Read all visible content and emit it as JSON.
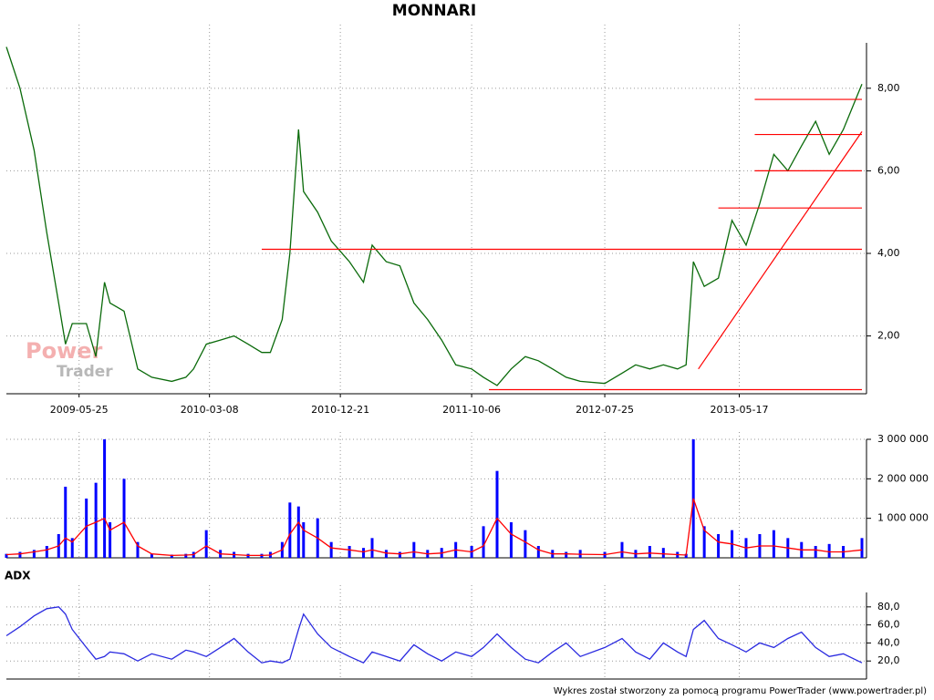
{
  "chart_data": [
    {
      "type": "line",
      "title": "MONNARI",
      "x": [
        "2008-12-16",
        "2009-01-15",
        "2009-02-15",
        "2009-03-15",
        "2009-04-10",
        "2009-04-25",
        "2009-05-10",
        "2009-06-10",
        "2009-07-01",
        "2009-07-20",
        "2009-08-01",
        "2009-09-01",
        "2009-10-01",
        "2009-11-01",
        "2009-12-15",
        "2010-01-15",
        "2010-02-01",
        "2010-03-01",
        "2010-04-01",
        "2010-05-01",
        "2010-06-01",
        "2010-07-01",
        "2010-07-20",
        "2010-08-15",
        "2010-09-01",
        "2010-09-20",
        "2010-10-01",
        "2010-11-01",
        "2010-12-01",
        "2011-01-10",
        "2011-02-10",
        "2011-03-01",
        "2011-04-01",
        "2011-05-01",
        "2011-06-01",
        "2011-07-01",
        "2011-08-01",
        "2011-09-01",
        "2011-10-06",
        "2011-11-01",
        "2011-12-01",
        "2012-01-01",
        "2012-02-01",
        "2012-03-01",
        "2012-04-01",
        "2012-05-01",
        "2012-06-01",
        "2012-07-25",
        "2012-09-01",
        "2012-10-01",
        "2012-11-01",
        "2012-12-01",
        "2013-01-01",
        "2013-01-20",
        "2013-02-05",
        "2013-03-01",
        "2013-04-01",
        "2013-05-01",
        "2013-06-01",
        "2013-07-01",
        "2013-08-01",
        "2013-09-01",
        "2013-10-01",
        "2013-11-01",
        "2013-12-01",
        "2014-01-01",
        "2014-02-11"
      ],
      "series": [
        {
          "color": "#0a6a0a",
          "values": [
            9.0,
            8.0,
            6.5,
            4.5,
            2.8,
            1.8,
            2.3,
            2.3,
            1.5,
            3.3,
            2.8,
            2.6,
            1.2,
            1.0,
            0.9,
            1.0,
            1.2,
            1.8,
            1.9,
            2.0,
            1.8,
            1.6,
            1.6,
            2.4,
            4.0,
            7.0,
            5.5,
            5.0,
            4.3,
            3.8,
            3.3,
            4.2,
            3.8,
            3.7,
            2.8,
            2.4,
            1.9,
            1.3,
            1.2,
            1.0,
            0.8,
            1.2,
            1.5,
            1.4,
            1.2,
            1.0,
            0.9,
            0.85,
            1.1,
            1.3,
            1.2,
            1.3,
            1.2,
            1.3,
            3.8,
            3.2,
            3.4,
            4.8,
            4.2,
            5.2,
            6.4,
            6.0,
            6.6,
            7.2,
            6.4,
            7.0,
            8.1
          ]
        }
      ],
      "lines": [
        {
          "color": "#ff0000",
          "x": [
            "2010-07-01",
            "2014-02-11"
          ],
          "y": [
            4.1,
            4.1
          ]
        },
        {
          "color": "#ff0000",
          "x": [
            "2011-11-13",
            "2014-02-11"
          ],
          "y": [
            0.7,
            0.7
          ]
        },
        {
          "color": "#ff0000",
          "x": [
            "2013-04-01",
            "2014-02-11"
          ],
          "y": [
            5.1,
            5.1
          ]
        },
        {
          "color": "#ff0000",
          "x": [
            "2013-06-20",
            "2014-02-11"
          ],
          "y": [
            6.0,
            6.0
          ]
        },
        {
          "color": "#ff0000",
          "x": [
            "2013-06-20",
            "2014-02-11"
          ],
          "y": [
            6.88,
            6.88
          ]
        },
        {
          "color": "#ff0000",
          "x": [
            "2013-06-20",
            "2014-02-11"
          ],
          "y": [
            7.73,
            7.73
          ]
        },
        {
          "color": "#ff0000",
          "x": [
            "2013-02-16",
            "2014-02-11"
          ],
          "y": [
            1.2,
            6.95
          ]
        }
      ],
      "xlim": [
        "2008-12-16",
        "2014-02-11"
      ],
      "xticks": [
        "2009-05-25",
        "2010-03-08",
        "2010-12-21",
        "2011-10-06",
        "2012-07-25",
        "2013-05-17"
      ],
      "ylim": [
        0.6,
        9.1
      ],
      "yticks": [
        {
          "value": 2,
          "label": "2,00"
        },
        {
          "value": 4,
          "label": "4,00"
        },
        {
          "value": 6,
          "label": "6,00"
        },
        {
          "value": 8,
          "label": "8,00"
        }
      ],
      "grid": true,
      "watermark": [
        "Power",
        "Trader"
      ]
    },
    {
      "type": "bar",
      "x": [
        "2008-12-16",
        "2009-01-15",
        "2009-02-15",
        "2009-03-15",
        "2009-04-10",
        "2009-04-25",
        "2009-05-10",
        "2009-06-10",
        "2009-07-01",
        "2009-07-20",
        "2009-08-01",
        "2009-09-01",
        "2009-10-01",
        "2009-11-01",
        "2009-12-15",
        "2010-01-15",
        "2010-02-01",
        "2010-03-01",
        "2010-04-01",
        "2010-05-01",
        "2010-06-01",
        "2010-07-01",
        "2010-07-20",
        "2010-08-15",
        "2010-09-01",
        "2010-09-20",
        "2010-10-01",
        "2010-11-01",
        "2010-12-01",
        "2011-01-10",
        "2011-02-10",
        "2011-03-01",
        "2011-04-01",
        "2011-05-01",
        "2011-06-01",
        "2011-07-01",
        "2011-08-01",
        "2011-09-01",
        "2011-10-06",
        "2011-11-01",
        "2011-12-01",
        "2012-01-01",
        "2012-02-01",
        "2012-03-01",
        "2012-04-01",
        "2012-05-01",
        "2012-06-01",
        "2012-07-25",
        "2012-09-01",
        "2012-10-01",
        "2012-11-01",
        "2012-12-01",
        "2013-01-01",
        "2013-01-20",
        "2013-02-05",
        "2013-03-01",
        "2013-04-01",
        "2013-05-01",
        "2013-06-01",
        "2013-07-01",
        "2013-08-01",
        "2013-09-01",
        "2013-10-01",
        "2013-11-01",
        "2013-12-01",
        "2014-01-01",
        "2014-02-11"
      ],
      "series": [
        {
          "type": "bar",
          "color": "#0000ff",
          "values": [
            100000,
            150000,
            200000,
            300000,
            600000,
            1800000,
            500000,
            1500000,
            1900000,
            3000000,
            900000,
            2000000,
            400000,
            100000,
            80000,
            100000,
            150000,
            700000,
            200000,
            150000,
            100000,
            100000,
            150000,
            400000,
            1400000,
            1300000,
            900000,
            1000000,
            400000,
            300000,
            250000,
            500000,
            200000,
            150000,
            400000,
            200000,
            250000,
            400000,
            300000,
            800000,
            2200000,
            900000,
            700000,
            300000,
            200000,
            150000,
            200000,
            150000,
            400000,
            200000,
            300000,
            250000,
            150000,
            100000,
            3000000,
            800000,
            600000,
            700000,
            500000,
            600000,
            700000,
            500000,
            400000,
            300000,
            350000,
            300000,
            500000
          ]
        },
        {
          "type": "line",
          "color": "#ff0000",
          "values": [
            80000,
            100000,
            150000,
            200000,
            300000,
            500000,
            400000,
            800000,
            900000,
            1000000,
            700000,
            900000,
            300000,
            100000,
            60000,
            70000,
            80000,
            300000,
            100000,
            80000,
            60000,
            60000,
            70000,
            200000,
            600000,
            900000,
            700000,
            500000,
            250000,
            200000,
            150000,
            200000,
            120000,
            100000,
            150000,
            100000,
            120000,
            200000,
            150000,
            300000,
            1000000,
            600000,
            400000,
            200000,
            100000,
            100000,
            90000,
            80000,
            150000,
            100000,
            120000,
            100000,
            80000,
            70000,
            1500000,
            700000,
            400000,
            350000,
            250000,
            300000,
            300000,
            250000,
            200000,
            200000,
            150000,
            150000,
            200000
          ]
        }
      ],
      "xlim": [
        "2008-12-16",
        "2014-02-11"
      ],
      "ylim": [
        0,
        3000000
      ],
      "yticks": [
        {
          "value": 1000000,
          "label": "1 000 000"
        },
        {
          "value": 2000000,
          "label": "2 000 000"
        },
        {
          "value": 3000000,
          "label": "3 000 000"
        }
      ],
      "grid": true
    },
    {
      "type": "line",
      "title": "ADX",
      "x": [
        "2008-12-16",
        "2009-01-15",
        "2009-02-15",
        "2009-03-15",
        "2009-04-10",
        "2009-04-25",
        "2009-05-10",
        "2009-06-10",
        "2009-07-01",
        "2009-07-20",
        "2009-08-01",
        "2009-09-01",
        "2009-10-01",
        "2009-11-01",
        "2009-12-15",
        "2010-01-15",
        "2010-02-01",
        "2010-03-01",
        "2010-04-01",
        "2010-05-01",
        "2010-06-01",
        "2010-07-01",
        "2010-07-20",
        "2010-08-15",
        "2010-09-01",
        "2010-09-20",
        "2010-10-01",
        "2010-11-01",
        "2010-12-01",
        "2011-01-10",
        "2011-02-10",
        "2011-03-01",
        "2011-04-01",
        "2011-05-01",
        "2011-06-01",
        "2011-07-01",
        "2011-08-01",
        "2011-09-01",
        "2011-10-06",
        "2011-11-01",
        "2011-12-01",
        "2012-01-01",
        "2012-02-01",
        "2012-03-01",
        "2012-04-01",
        "2012-05-01",
        "2012-06-01",
        "2012-07-25",
        "2012-09-01",
        "2012-10-01",
        "2012-11-01",
        "2012-12-01",
        "2013-01-01",
        "2013-01-20",
        "2013-02-05",
        "2013-03-01",
        "2013-04-01",
        "2013-05-01",
        "2013-06-01",
        "2013-07-01",
        "2013-08-01",
        "2013-09-01",
        "2013-10-01",
        "2013-11-01",
        "2013-12-01",
        "2014-01-01",
        "2014-02-11"
      ],
      "series": [
        {
          "color": "#2a2ae0",
          "values": [
            48,
            58,
            70,
            78,
            80,
            72,
            55,
            35,
            22,
            25,
            30,
            28,
            20,
            28,
            22,
            32,
            30,
            25,
            35,
            45,
            30,
            18,
            20,
            18,
            22,
            55,
            72,
            50,
            35,
            25,
            18,
            30,
            25,
            20,
            38,
            28,
            20,
            30,
            25,
            35,
            50,
            35,
            22,
            18,
            30,
            40,
            25,
            35,
            45,
            30,
            22,
            40,
            30,
            25,
            55,
            65,
            45,
            38,
            30,
            40,
            35,
            45,
            52,
            35,
            25,
            28,
            18
          ]
        }
      ],
      "xlim": [
        "2008-12-16",
        "2014-02-11"
      ],
      "ylim": [
        0,
        96
      ],
      "yticks": [
        {
          "value": 20,
          "label": "20,0"
        },
        {
          "value": 40,
          "label": "40,0"
        },
        {
          "value": 60,
          "label": "60,0"
        },
        {
          "value": 80,
          "label": "80,0"
        }
      ],
      "grid": true
    }
  ],
  "footer": "Wykres został stworzony za pomocą programu PowerTrader (www.powertrader.pl)"
}
